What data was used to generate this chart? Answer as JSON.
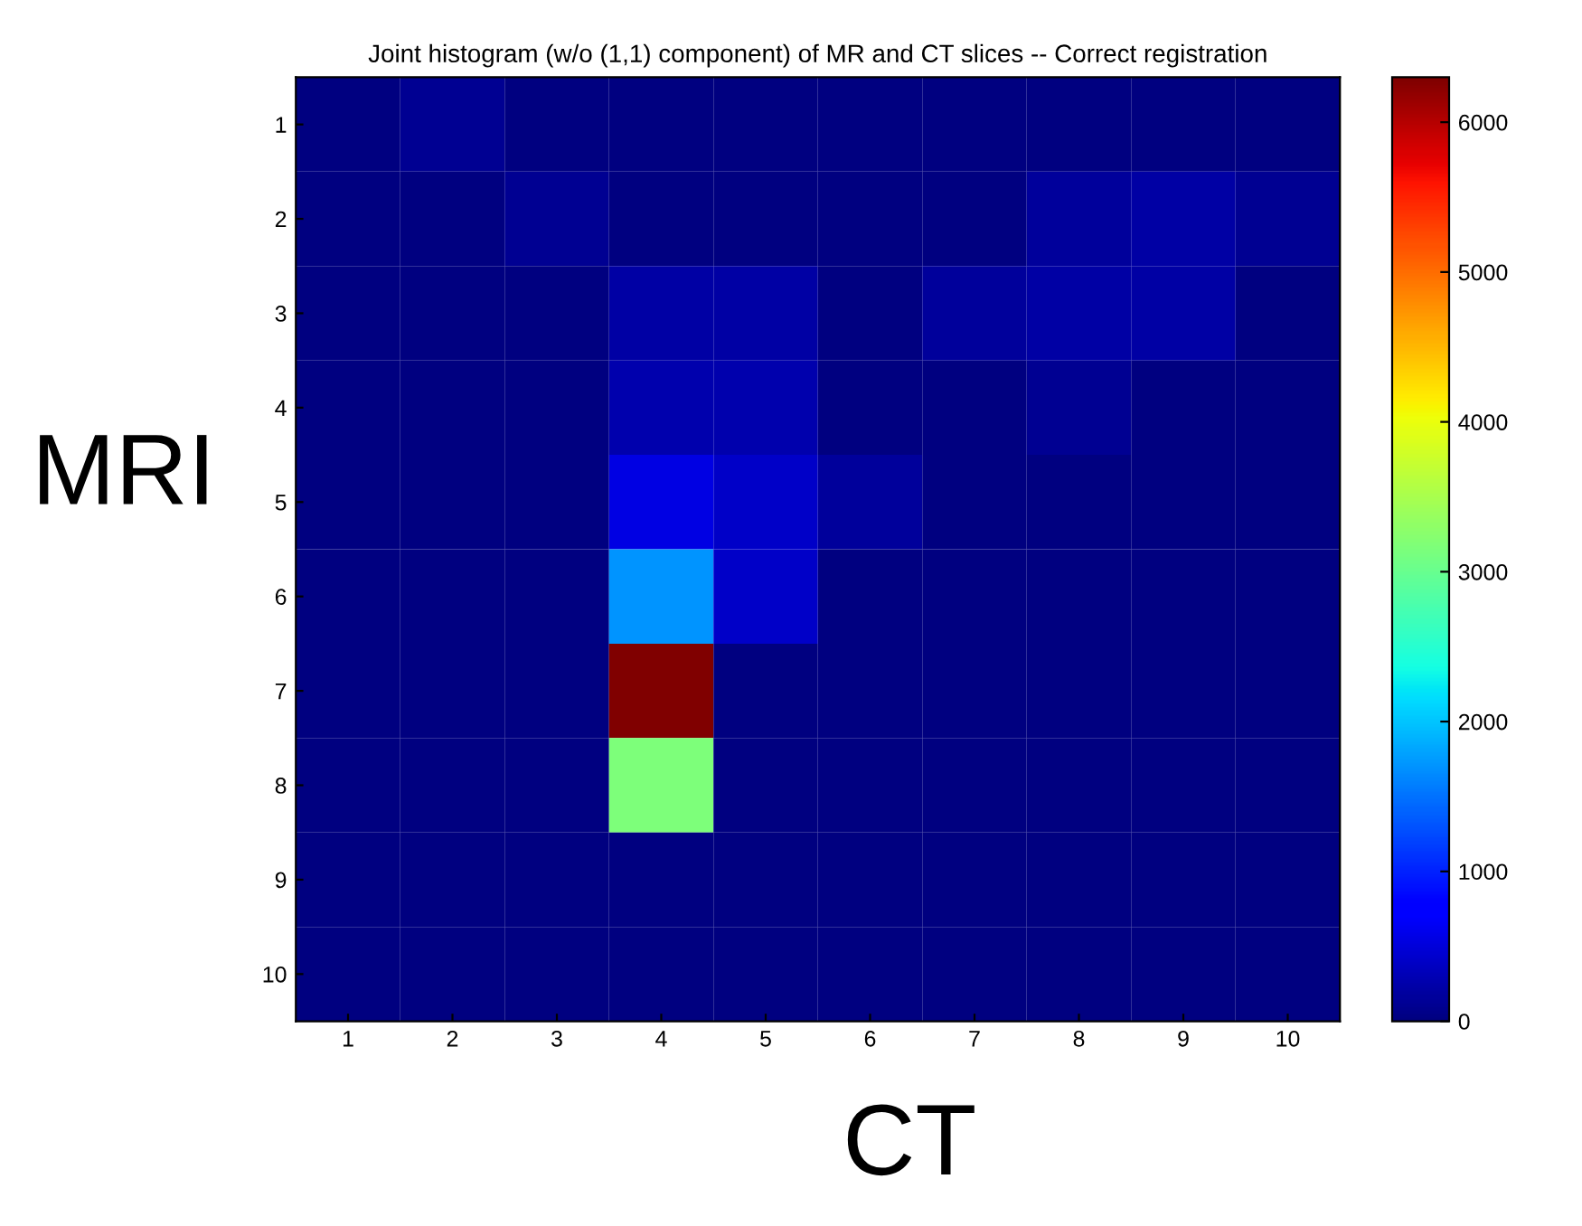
{
  "chart_data": {
    "type": "heatmap",
    "title": "Joint histogram (w/o (1,1) component) of MR and CT slices -- Correct registration",
    "xlabel": "CT",
    "ylabel": "MRI",
    "categories": [
      "1",
      "2",
      "3",
      "4",
      "5",
      "6",
      "7",
      "8",
      "9",
      "10"
    ],
    "y_categories": [
      "1",
      "2",
      "3",
      "4",
      "5",
      "6",
      "7",
      "8",
      "9",
      "10"
    ],
    "cells": [
      [
        0,
        120,
        0,
        0,
        0,
        0,
        0,
        0,
        0,
        0
      ],
      [
        0,
        0,
        120,
        0,
        0,
        0,
        0,
        150,
        220,
        120
      ],
      [
        0,
        0,
        0,
        200,
        200,
        0,
        160,
        220,
        220,
        0
      ],
      [
        0,
        0,
        0,
        250,
        250,
        0,
        0,
        120,
        0,
        0
      ],
      [
        0,
        0,
        0,
        550,
        400,
        150,
        0,
        0,
        0,
        0
      ],
      [
        0,
        0,
        0,
        1700,
        400,
        0,
        0,
        0,
        0,
        0
      ],
      [
        0,
        0,
        0,
        6300,
        0,
        0,
        0,
        0,
        0,
        0
      ],
      [
        0,
        0,
        0,
        3150,
        0,
        0,
        0,
        0,
        0,
        0
      ],
      [
        0,
        0,
        0,
        0,
        0,
        0,
        0,
        0,
        0,
        0
      ],
      [
        0,
        0,
        0,
        0,
        0,
        0,
        0,
        0,
        0,
        0
      ]
    ],
    "clim": [
      0,
      6300
    ],
    "cticks": [
      0,
      1000,
      2000,
      3000,
      4000,
      5000,
      6000
    ]
  }
}
